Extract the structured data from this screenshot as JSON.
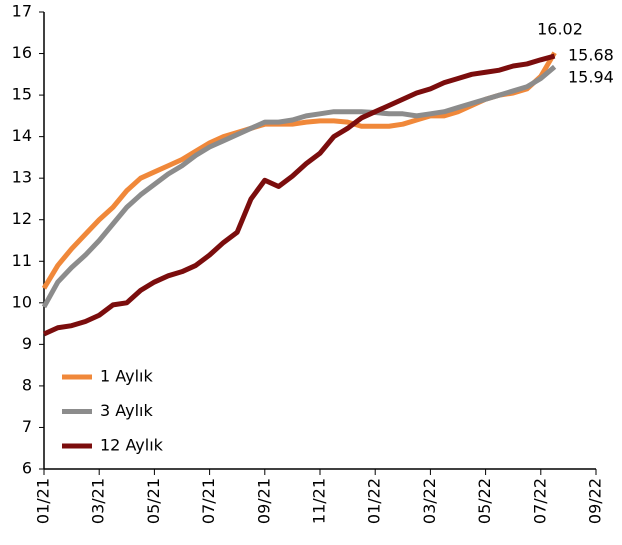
{
  "chart_data": {
    "type": "line",
    "categories": [
      "01/21",
      null,
      null,
      null,
      "03/21",
      null,
      null,
      null,
      "05/21",
      null,
      null,
      null,
      "07/21",
      null,
      null,
      null,
      "09/21",
      null,
      null,
      null,
      "11/21",
      null,
      null,
      null,
      "01/22",
      null,
      null,
      null,
      "03/22",
      null,
      null,
      null,
      "05/22",
      null,
      null,
      null,
      "07/22",
      null,
      null,
      null,
      "09/22"
    ],
    "series": [
      {
        "name": "1 Aylık",
        "color": "#f0883a",
        "values": [
          10.35,
          10.9,
          11.3,
          11.65,
          12.0,
          12.3,
          12.7,
          13.0,
          13.15,
          13.3,
          13.45,
          13.65,
          13.85,
          14.0,
          14.1,
          14.2,
          14.3,
          14.3,
          14.3,
          14.35,
          14.38,
          14.38,
          14.35,
          14.25,
          14.25,
          14.25,
          14.3,
          14.4,
          14.5,
          14.5,
          14.6,
          14.75,
          14.9,
          15.0,
          15.05,
          15.15,
          15.45,
          16.02,
          null,
          null,
          null
        ]
      },
      {
        "name": "3 Aylık",
        "color": "#8c8c8c",
        "values": [
          9.9,
          10.5,
          10.85,
          11.15,
          11.5,
          11.9,
          12.3,
          12.6,
          12.85,
          13.1,
          13.3,
          13.55,
          13.75,
          13.9,
          14.05,
          14.2,
          14.35,
          14.35,
          14.4,
          14.5,
          14.55,
          14.6,
          14.6,
          14.6,
          14.58,
          14.55,
          14.55,
          14.5,
          14.55,
          14.6,
          14.7,
          14.8,
          14.9,
          15.0,
          15.1,
          15.2,
          15.4,
          15.68,
          null,
          null,
          null
        ]
      },
      {
        "name": "12 Aylık",
        "color": "#7b0d0d",
        "values": [
          9.25,
          9.4,
          9.45,
          9.55,
          9.7,
          9.95,
          10.0,
          10.3,
          10.5,
          10.65,
          10.75,
          10.9,
          11.15,
          11.45,
          11.7,
          12.5,
          12.95,
          12.8,
          13.05,
          13.35,
          13.6,
          14.0,
          14.2,
          14.45,
          14.6,
          14.75,
          14.9,
          15.05,
          15.15,
          15.3,
          15.4,
          15.5,
          15.55,
          15.6,
          15.7,
          15.75,
          15.85,
          15.94,
          null,
          null,
          null
        ]
      }
    ],
    "ylim": [
      6,
      17
    ],
    "yticks": [
      6,
      7,
      8,
      9,
      10,
      11,
      12,
      13,
      14,
      15,
      16,
      17
    ],
    "legend": "lower left"
  }
}
